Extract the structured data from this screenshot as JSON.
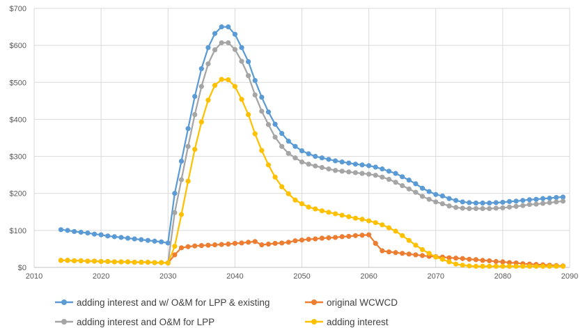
{
  "chart_data": {
    "type": "line",
    "title": "",
    "xlabel": "",
    "ylabel": "",
    "xlim": [
      2010,
      2090
    ],
    "ylim": [
      0,
      700
    ],
    "x_ticks": [
      "2010",
      "2020",
      "2030",
      "2040",
      "2050",
      "2060",
      "2070",
      "2080",
      "2090"
    ],
    "y_ticks": [
      "$0",
      "$100",
      "$200",
      "$300",
      "$400",
      "$500",
      "$600",
      "$700"
    ],
    "grid": true,
    "legend_position": "bottom",
    "x": [
      2014,
      2015,
      2016,
      2017,
      2018,
      2019,
      2020,
      2021,
      2022,
      2023,
      2024,
      2025,
      2026,
      2027,
      2028,
      2029,
      2030,
      2031,
      2032,
      2033,
      2034,
      2035,
      2036,
      2037,
      2038,
      2039,
      2040,
      2041,
      2042,
      2043,
      2044,
      2045,
      2046,
      2047,
      2048,
      2049,
      2050,
      2051,
      2052,
      2053,
      2054,
      2055,
      2056,
      2057,
      2058,
      2059,
      2060,
      2061,
      2062,
      2063,
      2064,
      2065,
      2066,
      2067,
      2068,
      2069,
      2070,
      2071,
      2072,
      2073,
      2074,
      2075,
      2076,
      2077,
      2078,
      2079,
      2080,
      2081,
      2082,
      2083,
      2084,
      2085,
      2086,
      2087,
      2088,
      2089
    ],
    "series": [
      {
        "name": "adding interest and w/ O&M for LPP & existing",
        "color": "#5B9BD5",
        "values": [
          102,
          100,
          97,
          95,
          93,
          90,
          88,
          85,
          83,
          81,
          79,
          77,
          75,
          73,
          71,
          69,
          66,
          200,
          287,
          375,
          462,
          537,
          594,
          632,
          650,
          650,
          630,
          594,
          556,
          505,
          460,
          420,
          387,
          362,
          341,
          327,
          315,
          307,
          300,
          296,
          292,
          288,
          285,
          282,
          279,
          277,
          275,
          271,
          266,
          260,
          254,
          245,
          236,
          226,
          214,
          205,
          197,
          193,
          186,
          181,
          177,
          175,
          174,
          174,
          174,
          175,
          176,
          178,
          179,
          181,
          183,
          184,
          186,
          187,
          189,
          190
        ]
      },
      {
        "name": "original WCWCD",
        "color": "#ED7D31",
        "values": [
          19,
          19,
          18,
          18,
          17,
          17,
          16,
          16,
          15,
          15,
          15,
          14,
          14,
          14,
          13,
          13,
          12,
          34,
          53,
          56,
          58,
          59,
          60,
          61,
          62,
          63,
          65,
          66,
          68,
          70,
          61,
          63,
          65,
          66,
          68,
          72,
          74,
          76,
          77,
          79,
          80,
          81,
          83,
          84,
          86,
          87,
          88,
          65,
          45,
          42,
          40,
          38,
          36,
          34,
          32,
          30,
          29,
          28,
          26,
          25,
          24,
          22,
          21,
          19,
          18,
          16,
          15,
          13,
          12,
          10,
          9,
          8,
          7,
          6,
          5,
          4
        ]
      },
      {
        "name": "adding interest and O&M for LPP",
        "color": "#A5A5A5",
        "values": [
          19,
          19,
          18,
          18,
          17,
          17,
          16,
          16,
          15,
          15,
          15,
          14,
          14,
          14,
          13,
          13,
          12,
          148,
          237,
          327,
          413,
          489,
          550,
          588,
          607,
          607,
          589,
          557,
          518,
          466,
          422,
          386,
          352,
          327,
          308,
          296,
          285,
          279,
          274,
          270,
          266,
          262,
          260,
          258,
          256,
          254,
          252,
          249,
          244,
          238,
          230,
          221,
          212,
          203,
          192,
          184,
          177,
          172,
          166,
          162,
          160,
          159,
          159,
          159,
          159,
          160,
          161,
          163,
          165,
          167,
          170,
          171,
          173,
          175,
          177,
          179
        ]
      },
      {
        "name": "adding interest",
        "color": "#FFC000",
        "values": [
          19,
          19,
          18,
          18,
          17,
          17,
          16,
          16,
          15,
          15,
          15,
          14,
          14,
          14,
          13,
          13,
          12,
          57,
          143,
          233,
          319,
          393,
          452,
          492,
          508,
          507,
          489,
          454,
          413,
          361,
          316,
          277,
          244,
          218,
          199,
          182,
          172,
          163,
          158,
          153,
          149,
          145,
          141,
          137,
          133,
          130,
          126,
          121,
          115,
          107,
          98,
          86,
          73,
          60,
          48,
          38,
          28,
          22,
          15,
          9,
          6,
          4,
          3,
          3,
          3,
          3,
          3,
          3,
          3,
          3,
          3,
          3,
          3,
          3,
          3,
          3
        ]
      }
    ]
  }
}
